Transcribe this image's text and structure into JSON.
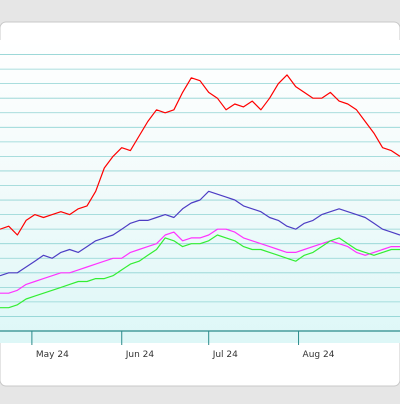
{
  "chart_data": {
    "type": "line",
    "xlabels": [
      "May 24",
      "Jun 24",
      "Jul 24",
      "Aug 24"
    ],
    "xlabel_dates": [
      "2024-05-01",
      "2024-06-01",
      "2024-07-01",
      "2024-08-01"
    ],
    "x_range": [
      "2024-04-20",
      "2024-09-05"
    ],
    "ylim": [
      0,
      100
    ],
    "grid": true,
    "legend": "none",
    "series": [
      {
        "color": "#ff0000",
        "x": [
          "2024-04-20",
          "2024-04-23",
          "2024-04-26",
          "2024-04-29",
          "2024-05-02",
          "2024-05-05",
          "2024-05-08",
          "2024-05-11",
          "2024-05-14",
          "2024-05-17",
          "2024-05-20",
          "2024-05-23",
          "2024-05-26",
          "2024-05-29",
          "2024-06-01",
          "2024-06-04",
          "2024-06-07",
          "2024-06-10",
          "2024-06-13",
          "2024-06-16",
          "2024-06-19",
          "2024-06-22",
          "2024-06-25",
          "2024-06-28",
          "2024-07-01",
          "2024-07-04",
          "2024-07-07",
          "2024-07-10",
          "2024-07-13",
          "2024-07-16",
          "2024-07-19",
          "2024-07-22",
          "2024-07-25",
          "2024-07-28",
          "2024-07-31",
          "2024-08-03",
          "2024-08-06",
          "2024-08-09",
          "2024-08-12",
          "2024-08-15",
          "2024-08-18",
          "2024-08-21",
          "2024-08-24",
          "2024-08-27",
          "2024-08-30",
          "2024-09-02",
          "2024-09-05"
        ],
        "y": [
          35,
          36,
          33,
          38,
          40,
          39,
          40,
          41,
          40,
          42,
          43,
          48,
          56,
          60,
          63,
          62,
          67,
          72,
          76,
          75,
          76,
          82,
          87,
          86,
          82,
          80,
          76,
          78,
          77,
          79,
          76,
          80,
          85,
          88,
          84,
          82,
          80,
          80,
          82,
          79,
          78,
          76,
          72,
          68,
          63,
          62,
          60
        ]
      },
      {
        "color": "#4d3dc4",
        "x": [
          "2024-04-20",
          "2024-04-23",
          "2024-04-26",
          "2024-04-29",
          "2024-05-02",
          "2024-05-05",
          "2024-05-08",
          "2024-05-11",
          "2024-05-14",
          "2024-05-17",
          "2024-05-20",
          "2024-05-23",
          "2024-05-26",
          "2024-05-29",
          "2024-06-01",
          "2024-06-04",
          "2024-06-07",
          "2024-06-10",
          "2024-06-13",
          "2024-06-16",
          "2024-06-19",
          "2024-06-22",
          "2024-06-25",
          "2024-06-28",
          "2024-07-01",
          "2024-07-04",
          "2024-07-07",
          "2024-07-10",
          "2024-07-13",
          "2024-07-16",
          "2024-07-19",
          "2024-07-22",
          "2024-07-25",
          "2024-07-28",
          "2024-07-31",
          "2024-08-03",
          "2024-08-06",
          "2024-08-09",
          "2024-08-12",
          "2024-08-15",
          "2024-08-18",
          "2024-08-21",
          "2024-08-24",
          "2024-08-27",
          "2024-08-30",
          "2024-09-02",
          "2024-09-05"
        ],
        "y": [
          19,
          20,
          20,
          22,
          24,
          26,
          25,
          27,
          28,
          27,
          29,
          31,
          32,
          33,
          35,
          37,
          38,
          38,
          39,
          40,
          39,
          42,
          44,
          45,
          48,
          47,
          46,
          45,
          43,
          42,
          41,
          39,
          38,
          36,
          35,
          37,
          38,
          40,
          41,
          42,
          41,
          40,
          39,
          37,
          35,
          34,
          33
        ]
      },
      {
        "color": "#ff33ff",
        "x": [
          "2024-04-20",
          "2024-04-23",
          "2024-04-26",
          "2024-04-29",
          "2024-05-02",
          "2024-05-05",
          "2024-05-08",
          "2024-05-11",
          "2024-05-14",
          "2024-05-17",
          "2024-05-20",
          "2024-05-23",
          "2024-05-26",
          "2024-05-29",
          "2024-06-01",
          "2024-06-04",
          "2024-06-07",
          "2024-06-10",
          "2024-06-13",
          "2024-06-16",
          "2024-06-19",
          "2024-06-22",
          "2024-06-25",
          "2024-06-28",
          "2024-07-01",
          "2024-07-04",
          "2024-07-07",
          "2024-07-10",
          "2024-07-13",
          "2024-07-16",
          "2024-07-19",
          "2024-07-22",
          "2024-07-25",
          "2024-07-28",
          "2024-07-31",
          "2024-08-03",
          "2024-08-06",
          "2024-08-09",
          "2024-08-12",
          "2024-08-15",
          "2024-08-18",
          "2024-08-21",
          "2024-08-24",
          "2024-08-27",
          "2024-08-30",
          "2024-09-02",
          "2024-09-05"
        ],
        "y": [
          13,
          13,
          14,
          16,
          17,
          18,
          19,
          20,
          20,
          21,
          22,
          23,
          24,
          25,
          25,
          27,
          28,
          29,
          30,
          33,
          34,
          31,
          32,
          32,
          33,
          35,
          35,
          34,
          32,
          31,
          30,
          29,
          28,
          27,
          27,
          28,
          29,
          30,
          31,
          30,
          29,
          27,
          26,
          27,
          28,
          29,
          29
        ]
      },
      {
        "color": "#33ee33",
        "x": [
          "2024-04-20",
          "2024-04-23",
          "2024-04-26",
          "2024-04-29",
          "2024-05-02",
          "2024-05-05",
          "2024-05-08",
          "2024-05-11",
          "2024-05-14",
          "2024-05-17",
          "2024-05-20",
          "2024-05-23",
          "2024-05-26",
          "2024-05-29",
          "2024-06-01",
          "2024-06-04",
          "2024-06-07",
          "2024-06-10",
          "2024-06-13",
          "2024-06-16",
          "2024-06-19",
          "2024-06-22",
          "2024-06-25",
          "2024-06-28",
          "2024-07-01",
          "2024-07-04",
          "2024-07-07",
          "2024-07-10",
          "2024-07-13",
          "2024-07-16",
          "2024-07-19",
          "2024-07-22",
          "2024-07-25",
          "2024-07-28",
          "2024-07-31",
          "2024-08-03",
          "2024-08-06",
          "2024-08-09",
          "2024-08-12",
          "2024-08-15",
          "2024-08-18",
          "2024-08-21",
          "2024-08-24",
          "2024-08-27",
          "2024-08-30",
          "2024-09-02",
          "2024-09-05"
        ],
        "y": [
          8,
          8,
          9,
          11,
          12,
          13,
          14,
          15,
          16,
          17,
          17,
          18,
          18,
          19,
          21,
          23,
          24,
          26,
          28,
          32,
          31,
          29,
          30,
          30,
          31,
          33,
          32,
          31,
          29,
          28,
          28,
          27,
          26,
          25,
          24,
          26,
          27,
          29,
          31,
          32,
          30,
          28,
          27,
          26,
          27,
          28,
          28
        ]
      }
    ]
  }
}
